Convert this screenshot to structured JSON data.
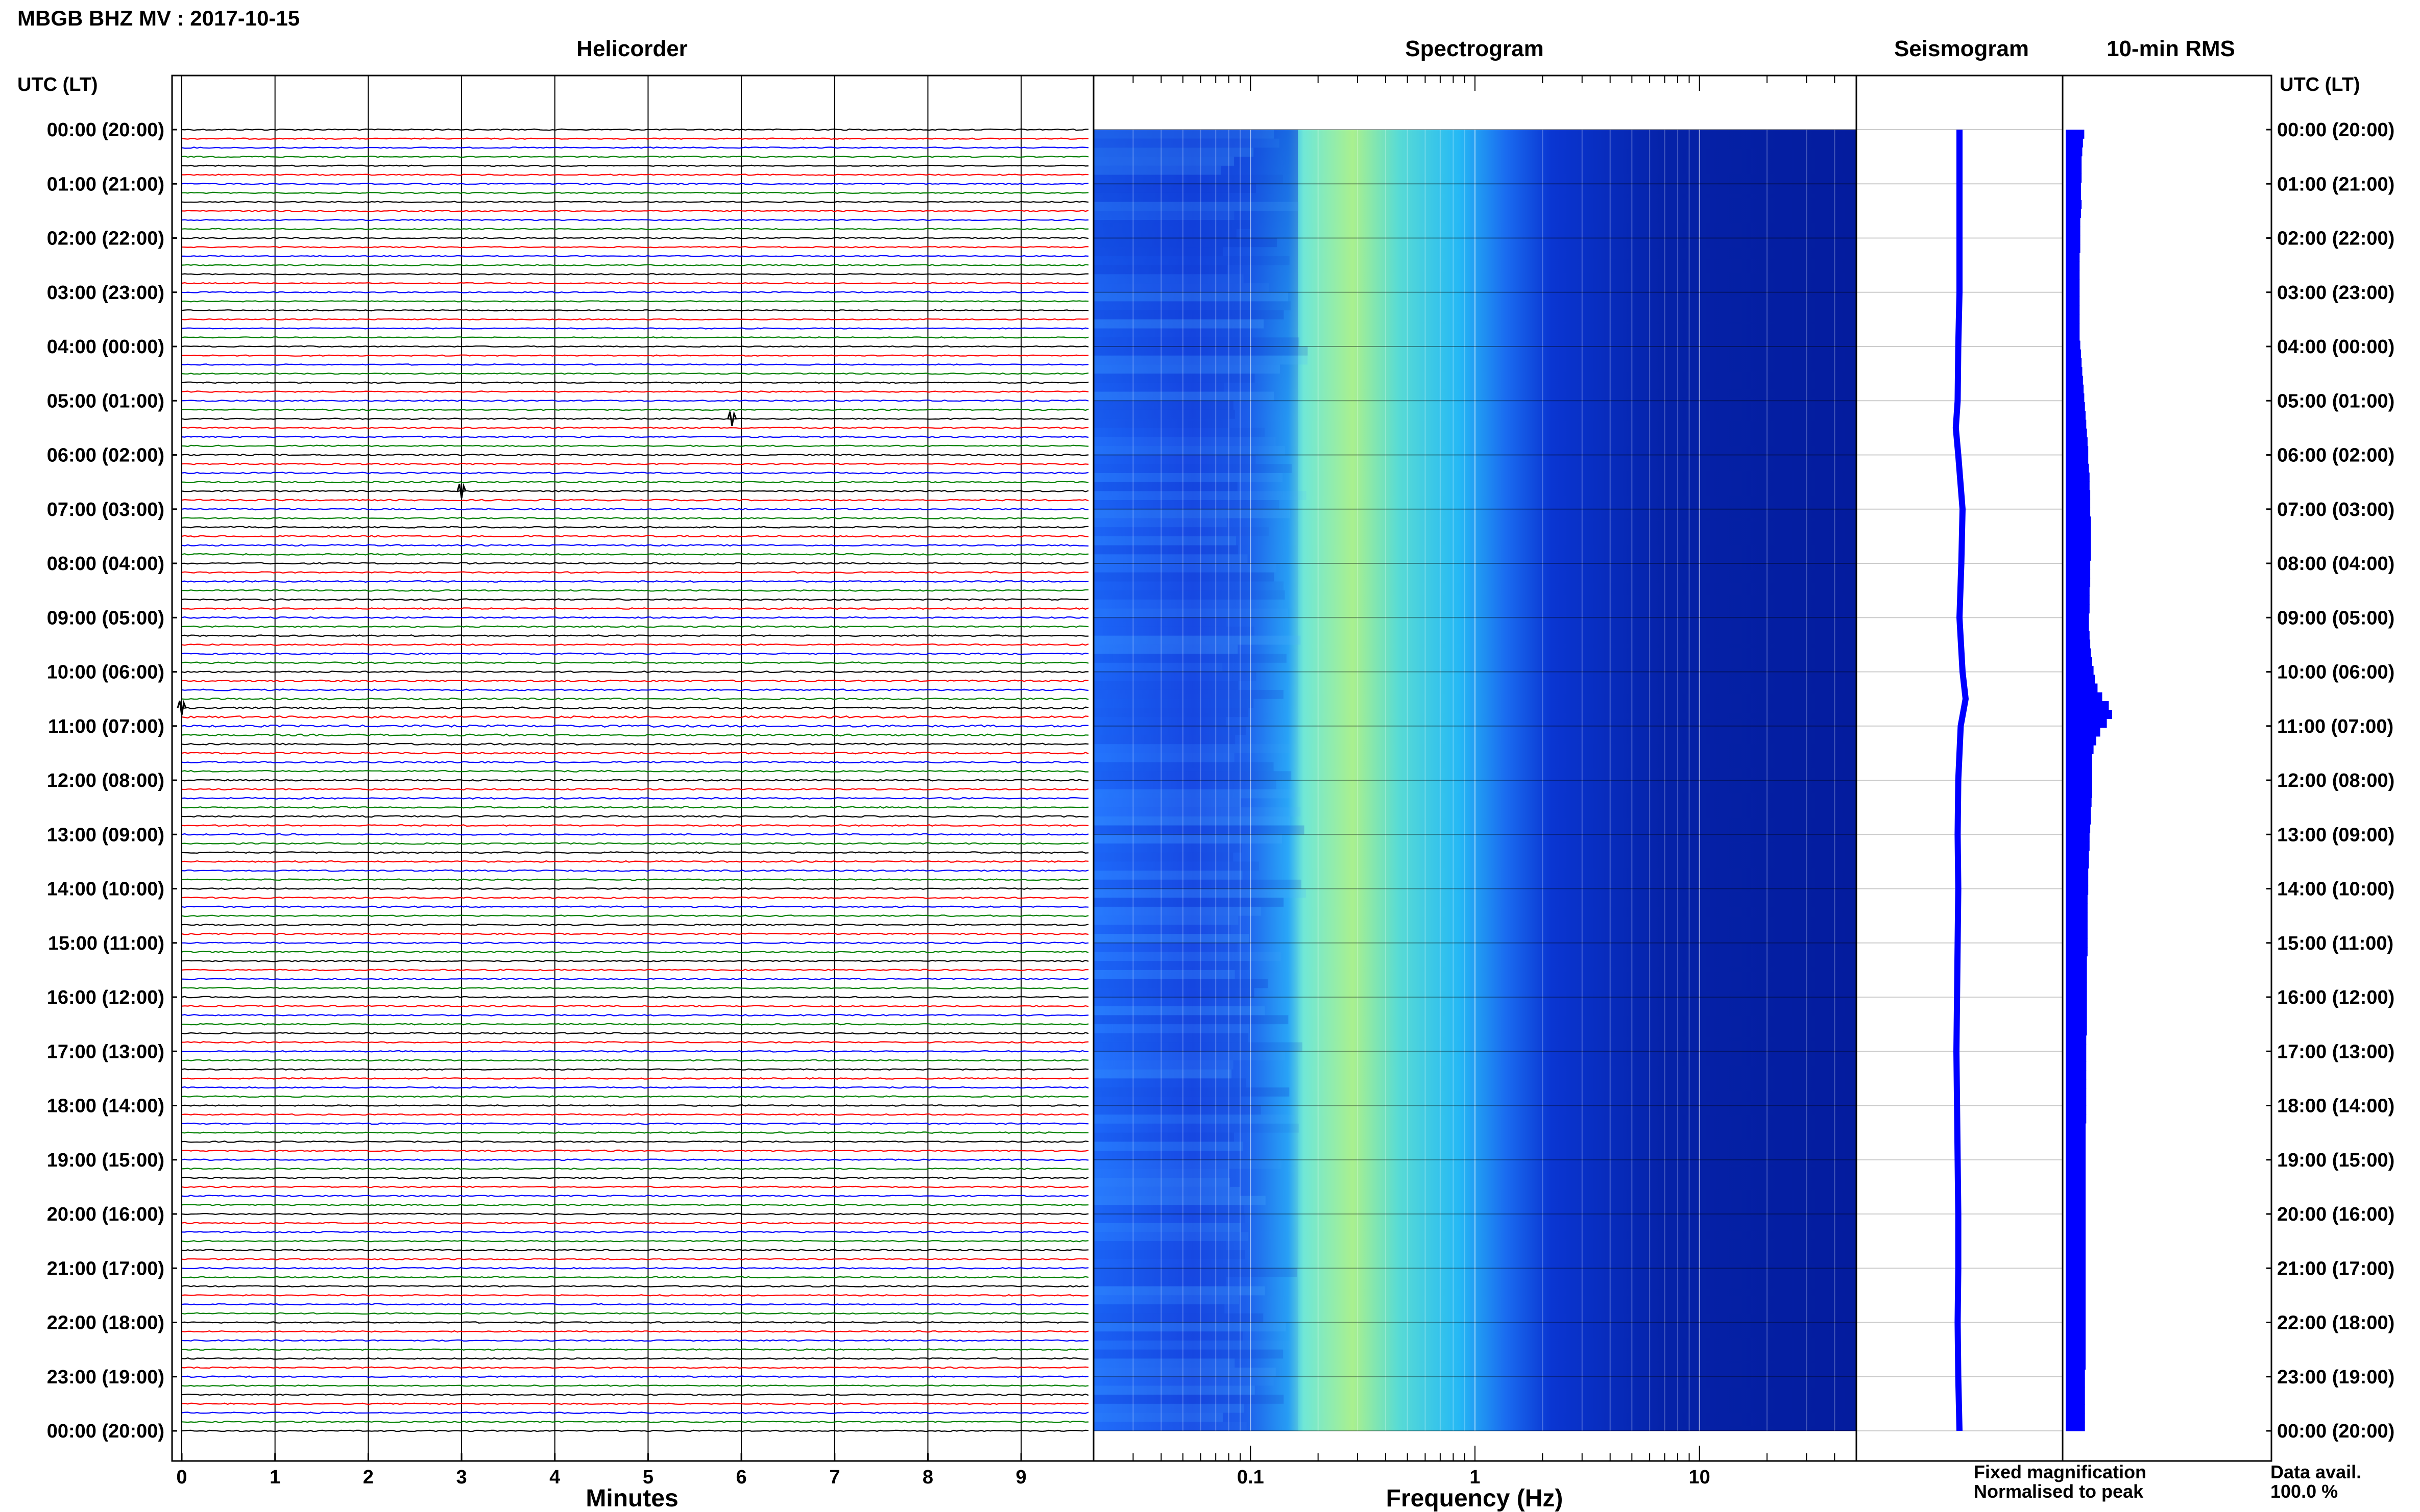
{
  "station_title": "MBGB BHZ MV : 2017-10-15",
  "panels": {
    "helicorder": "Helicorder",
    "spectrogram": "Spectrogram",
    "seismogram": "Seismogram",
    "rms": "10-min RMS"
  },
  "axes": {
    "time_header_left": "UTC (LT)",
    "time_header_right": "UTC (LT)",
    "x_label_helicorder": "Minutes",
    "x_label_spectrogram": "Frequency (Hz)",
    "minute_ticks": [
      "0",
      "1",
      "2",
      "3",
      "4",
      "5",
      "6",
      "7",
      "8",
      "9"
    ],
    "freq_ticks": [
      "0.1",
      "1",
      "10"
    ]
  },
  "time_labels": [
    "00:00 (20:00)",
    "01:00 (21:00)",
    "02:00 (22:00)",
    "03:00 (23:00)",
    "04:00 (00:00)",
    "05:00 (01:00)",
    "06:00 (02:00)",
    "07:00 (03:00)",
    "08:00 (04:00)",
    "09:00 (05:00)",
    "10:00 (06:00)",
    "11:00 (07:00)",
    "12:00 (08:00)",
    "13:00 (09:00)",
    "14:00 (10:00)",
    "15:00 (11:00)",
    "16:00 (12:00)",
    "17:00 (13:00)",
    "18:00 (14:00)",
    "19:00 (15:00)",
    "20:00 (16:00)",
    "21:00 (17:00)",
    "22:00 (18:00)",
    "23:00 (19:00)",
    "00:00 (20:00)"
  ],
  "legend": {
    "fixed": "Fixed magnification",
    "normalised": "Normalised to peak",
    "fixed_color": "#0000ff",
    "normalised_color": "#ff0000"
  },
  "data_avail": {
    "label": "Data avail.",
    "value": "100.0 %"
  },
  "colors": {
    "trace_cycle": [
      "#000000",
      "#ff0000",
      "#0000ff",
      "#008000"
    ],
    "seismogram": "#0000ff",
    "rms_bar": "#0000ff"
  },
  "chart_data": [
    {
      "type": "line",
      "title": "Helicorder",
      "xlabel": "Minutes",
      "ylabel": "UTC (LT)",
      "x_range": [
        0,
        10
      ],
      "traces_per_hour": 6,
      "trace_minutes": 10,
      "series_colors_cycle": [
        "black",
        "red",
        "blue",
        "green"
      ],
      "noted_events": [
        {
          "time": "05:20",
          "minute": 5.9
        },
        {
          "time": "06:40",
          "minute": 3.0
        },
        {
          "time": "10:40",
          "minute": 0.0
        }
      ]
    },
    {
      "type": "heatmap",
      "title": "Spectrogram",
      "xlabel": "Frequency (Hz)",
      "x_scale": "log",
      "x_range": [
        0.02,
        50
      ],
      "time_range_hours": [
        0,
        24
      ],
      "colormap": "jet",
      "peak_frequency_hz": 0.3,
      "band_edges_hz": [
        0.17,
        2.0
      ]
    },
    {
      "type": "line",
      "title": "Seismogram",
      "xlabel": "",
      "hours": [
        0,
        1,
        2,
        3,
        4,
        5,
        5.5,
        6,
        7,
        8,
        9,
        10,
        10.5,
        11,
        12,
        13,
        14,
        15,
        16,
        17,
        18,
        19,
        20,
        21,
        22,
        23,
        24
      ],
      "values": [
        0,
        0,
        0,
        0,
        -0.02,
        -0.03,
        -0.06,
        -0.02,
        0.05,
        0.03,
        0.0,
        0.05,
        0.1,
        0.02,
        -0.02,
        -0.03,
        -0.02,
        -0.03,
        -0.04,
        -0.05,
        -0.04,
        -0.03,
        -0.02,
        -0.02,
        -0.03,
        -0.02,
        0.0
      ]
    },
    {
      "type": "bar",
      "title": "10-min RMS",
      "orientation": "horizontal",
      "hours_start": 0,
      "step_minutes": 10,
      "values": [
        0.28,
        0.26,
        0.25,
        0.24,
        0.24,
        0.24,
        0.23,
        0.23,
        0.24,
        0.23,
        0.22,
        0.22,
        0.22,
        0.22,
        0.21,
        0.21,
        0.21,
        0.21,
        0.21,
        0.21,
        0.21,
        0.21,
        0.21,
        0.21,
        0.22,
        0.23,
        0.24,
        0.25,
        0.26,
        0.27,
        0.28,
        0.29,
        0.3,
        0.31,
        0.32,
        0.33,
        0.34,
        0.34,
        0.35,
        0.36,
        0.36,
        0.37,
        0.37,
        0.37,
        0.38,
        0.38,
        0.38,
        0.38,
        0.38,
        0.37,
        0.37,
        0.37,
        0.36,
        0.36,
        0.36,
        0.35,
        0.35,
        0.36,
        0.37,
        0.38,
        0.4,
        0.42,
        0.44,
        0.48,
        0.55,
        0.65,
        0.7,
        0.62,
        0.52,
        0.46,
        0.42,
        0.4,
        0.4,
        0.4,
        0.4,
        0.4,
        0.39,
        0.38,
        0.38,
        0.37,
        0.36,
        0.36,
        0.35,
        0.35,
        0.34,
        0.34,
        0.34,
        0.33,
        0.33,
        0.33,
        0.33,
        0.33,
        0.33,
        0.33,
        0.32,
        0.32,
        0.32,
        0.32,
        0.32,
        0.32,
        0.32,
        0.32,
        0.32,
        0.31,
        0.31,
        0.31,
        0.31,
        0.31,
        0.31,
        0.31,
        0.31,
        0.31,
        0.31,
        0.3,
        0.3,
        0.3,
        0.3,
        0.3,
        0.3,
        0.3,
        0.3,
        0.3,
        0.3,
        0.3,
        0.3,
        0.3,
        0.3,
        0.3,
        0.3,
        0.3,
        0.3,
        0.3,
        0.3,
        0.3,
        0.3,
        0.3,
        0.3,
        0.3,
        0.3,
        0.3,
        0.3,
        0.29,
        0.29,
        0.29,
        0.29,
        0.29,
        0.29,
        0.29
      ],
      "x_range": [
        0,
        1
      ]
    }
  ]
}
